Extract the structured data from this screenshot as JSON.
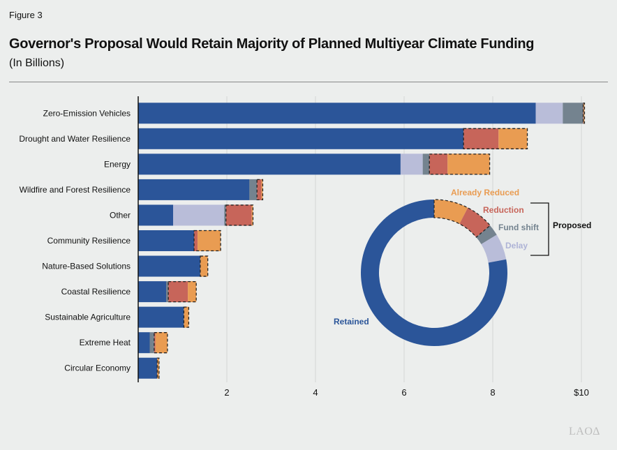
{
  "figure_label": "Figure 3",
  "title": "Governor's Proposal Would Retain Majority of Planned Multiyear Climate Funding",
  "subtitle": "(In Billions)",
  "logo_text": "LAO",
  "colors": {
    "Retained": "#2b5599",
    "Delay": "#b9bdd9",
    "Fund shift": "#74838f",
    "Reduction": "#c7655a",
    "Already Reduced": "#e99c52",
    "background": "#eceeed"
  },
  "chart_data": {
    "type": "bar",
    "orientation": "horizontal",
    "stacked": true,
    "title": "Governor's Proposal Would Retain Majority of Planned Multiyear Climate Funding",
    "subtitle": "(In Billions)",
    "categories": [
      "Zero-Emission Vehicles",
      "Drought and Water Resilience",
      "Energy",
      "Wildfire and Forest Resilience",
      "Other",
      "Community Resilience",
      "Nature-Based Solutions",
      "Coastal Resilience",
      "Sustainable Agriculture",
      "Extreme Heat",
      "Circular Economy"
    ],
    "series": [
      {
        "name": "Retained",
        "values": [
          8.97,
          7.34,
          5.92,
          2.51,
          0.79,
          1.26,
          1.4,
          0.63,
          1.03,
          0.26,
          0.43
        ]
      },
      {
        "name": "Delay",
        "values": [
          0.61,
          0,
          0.5,
          0,
          1.15,
          0,
          0,
          0,
          0,
          0,
          0
        ]
      },
      {
        "name": "Fund shift",
        "values": [
          0.46,
          0,
          0.15,
          0.17,
          0.04,
          0,
          0,
          0.05,
          0,
          0.1,
          0
        ]
      },
      {
        "name": "Reduction",
        "values": [
          0.01,
          0.79,
          0.41,
          0.1,
          0.58,
          0.08,
          0,
          0.44,
          0,
          0.03,
          0
        ]
      },
      {
        "name": "Already Reduced",
        "values": [
          0.02,
          0.65,
          0.95,
          0.03,
          0.03,
          0.52,
          0.17,
          0.19,
          0.11,
          0.27,
          0.04
        ]
      }
    ],
    "xlim": [
      0,
      10
    ],
    "xticks": [
      "2",
      "4",
      "6",
      "8",
      "$10"
    ],
    "xtick_values": [
      2,
      4,
      6,
      8,
      10
    ],
    "grid": "vertical",
    "proposed_bracket_label": "Proposed",
    "donut": {
      "segments_order": [
        "Already Reduced",
        "Reduction",
        "Fund shift",
        "Delay",
        "Retained"
      ],
      "labels": [
        "Already Reduced",
        "Reduction",
        "Fund shift",
        "Delay",
        "Retained"
      ]
    }
  }
}
